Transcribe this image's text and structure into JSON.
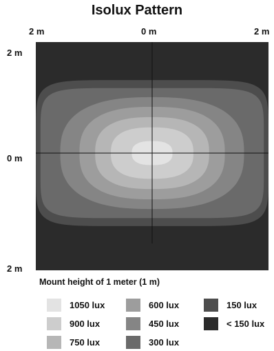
{
  "chart_data": {
    "type": "heatmap",
    "title": "Isolux Pattern",
    "x_tick_labels": [
      "2 m",
      "0 m",
      "2 m"
    ],
    "y_tick_labels": [
      "2 m",
      "0 m",
      "2 m"
    ],
    "xlim": [
      -2,
      2
    ],
    "ylim": [
      -2,
      2
    ],
    "grid": false,
    "crosshair_at_origin": true,
    "note": "Mount height of 1 meter (1 m)",
    "levels": [
      {
        "label": "< 150 lux",
        "lux_min": 0,
        "color": "#2b2b2b"
      },
      {
        "label": "150 lux",
        "lux_min": 150,
        "color": "#4d4d4d"
      },
      {
        "label": "300 lux",
        "lux_min": 300,
        "color": "#6a6a6a"
      },
      {
        "label": "450 lux",
        "lux_min": 450,
        "color": "#858585"
      },
      {
        "label": "600 lux",
        "lux_min": 600,
        "color": "#9d9d9d"
      },
      {
        "label": "750 lux",
        "lux_min": 750,
        "color": "#b6b6b6"
      },
      {
        "label": "900 lux",
        "lux_min": 900,
        "color": "#cdcdcd"
      },
      {
        "label": "1050 lux",
        "lux_min": 1050,
        "color": "#e3e3e3"
      }
    ],
    "contours": [
      {
        "lux": 150,
        "half_width_m": 2.0,
        "half_height_m": 1.28
      },
      {
        "lux": 300,
        "half_width_m": 1.92,
        "half_height_m": 1.14
      },
      {
        "lux": 450,
        "half_width_m": 1.58,
        "half_height_m": 0.98
      },
      {
        "lux": 600,
        "half_width_m": 1.25,
        "half_height_m": 0.81
      },
      {
        "lux": 750,
        "half_width_m": 0.98,
        "half_height_m": 0.63
      },
      {
        "lux": 900,
        "half_width_m": 0.71,
        "half_height_m": 0.45
      },
      {
        "lux": 1050,
        "half_width_m": 0.35,
        "half_height_m": 0.21
      }
    ],
    "legend": [
      {
        "label": "1050 lux",
        "color": "#e3e3e3"
      },
      {
        "label": "900 lux",
        "color": "#cdcdcd"
      },
      {
        "label": "750 lux",
        "color": "#b6b6b6"
      },
      {
        "label": "600 lux",
        "color": "#9d9d9d"
      },
      {
        "label": "450 lux",
        "color": "#858585"
      },
      {
        "label": "300 lux",
        "color": "#6a6a6a"
      },
      {
        "label": "150 lux",
        "color": "#4d4d4d"
      },
      {
        "label": "< 150 lux",
        "color": "#2b2b2b"
      }
    ]
  }
}
